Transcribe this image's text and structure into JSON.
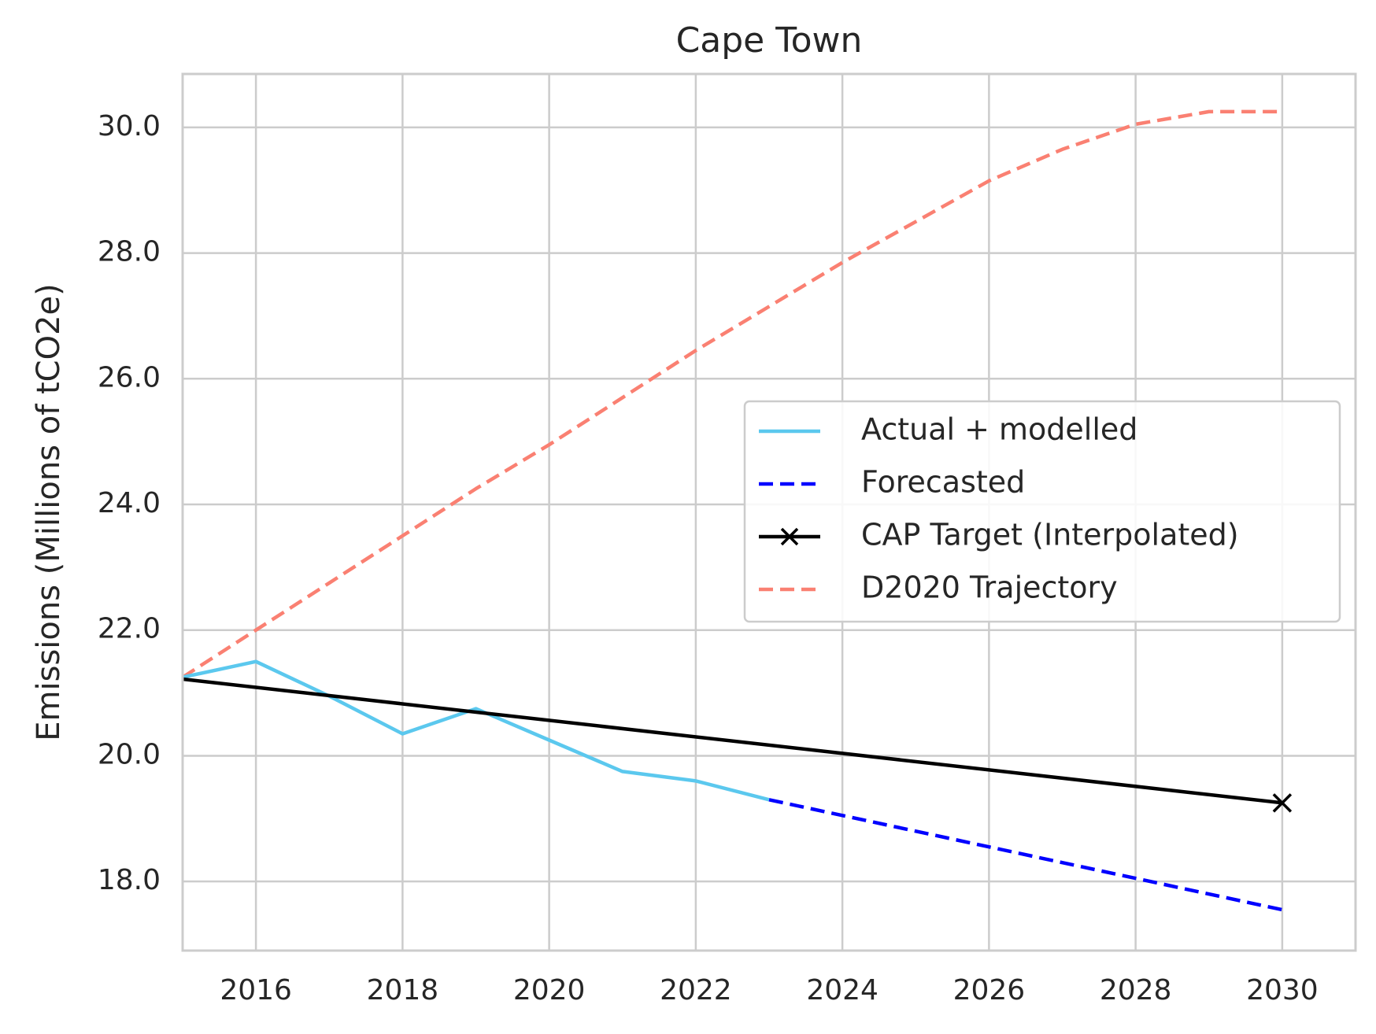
{
  "chart_data": {
    "type": "line",
    "title": "Cape Town",
    "xlabel": "",
    "ylabel": "Emissions (Millions of tCO2e)",
    "xlim": [
      2015,
      2031
    ],
    "ylim": [
      16.9,
      30.85
    ],
    "xticks": [
      2016,
      2018,
      2020,
      2022,
      2024,
      2026,
      2028,
      2030
    ],
    "yticks": [
      18.0,
      20.0,
      22.0,
      24.0,
      26.0,
      28.0,
      30.0
    ],
    "ytick_labels": [
      "18.0",
      "20.0",
      "22.0",
      "24.0",
      "26.0",
      "28.0",
      "30.0"
    ],
    "grid": true,
    "legend_position": "center-right",
    "series": [
      {
        "name": "Actual + modelled",
        "color": "#5bc8ee",
        "style": "solid",
        "marker": "none",
        "x": [
          2015,
          2016,
          2017,
          2018,
          2019,
          2020,
          2021,
          2022,
          2023
        ],
        "y": [
          21.25,
          21.5,
          20.95,
          20.35,
          20.75,
          20.25,
          19.75,
          19.6,
          19.3
        ]
      },
      {
        "name": "Forecasted",
        "color": "#0000ff",
        "style": "dashed",
        "marker": "none",
        "x": [
          2023,
          2030
        ],
        "y": [
          19.3,
          17.55
        ]
      },
      {
        "name": "CAP Target (Interpolated)",
        "color": "#000000",
        "style": "solid",
        "marker": "x",
        "marker_at": [
          2030
        ],
        "x": [
          2015,
          2030
        ],
        "y": [
          21.22,
          19.25
        ]
      },
      {
        "name": "D2020 Trajectory",
        "color": "#fa8072",
        "style": "dashed",
        "marker": "none",
        "x": [
          2015,
          2016,
          2017,
          2018,
          2019,
          2020,
          2021,
          2022,
          2023,
          2024,
          2025,
          2026,
          2027,
          2028,
          2029,
          2030
        ],
        "y": [
          21.25,
          22.0,
          22.75,
          23.5,
          24.25,
          24.95,
          25.7,
          26.45,
          27.15,
          27.85,
          28.5,
          29.15,
          29.65,
          30.05,
          30.25,
          30.25
        ]
      }
    ]
  }
}
